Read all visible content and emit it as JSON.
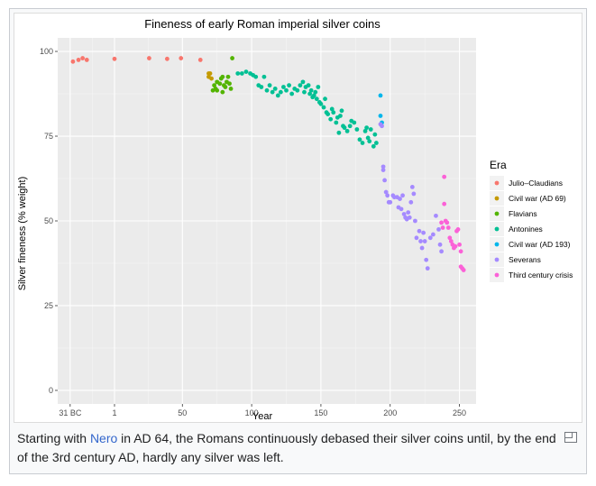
{
  "caption": {
    "before": "Starting with ",
    "link": "Nero",
    "after": " in AD 64, the Romans continuously debased their silver coins until, by the end of the 3rd century AD, hardly any silver was left."
  },
  "magnify_icon": "enlarge-icon",
  "chart_data": {
    "type": "scatter",
    "title": "Fineness of early Roman imperial silver coins",
    "xlabel": "Year",
    "ylabel": "Silver fineness (% weight)",
    "xlim": [
      -40,
      262
    ],
    "ylim": [
      -4,
      104
    ],
    "x_ticks": [
      {
        "value": -31,
        "label": "31 BC"
      },
      {
        "value": 1,
        "label": "1"
      },
      {
        "value": 50,
        "label": "50"
      },
      {
        "value": 100,
        "label": "100"
      },
      {
        "value": 150,
        "label": "150"
      },
      {
        "value": 200,
        "label": "200"
      },
      {
        "value": 250,
        "label": "250"
      }
    ],
    "y_ticks": [
      0,
      25,
      50,
      75,
      100
    ],
    "grid": true,
    "legend": {
      "title": "Era",
      "position": "right"
    },
    "series": [
      {
        "name": "Julio–Claudians",
        "color": "#F8766D",
        "points": [
          [
            -29,
            97
          ],
          [
            -25,
            97.5
          ],
          [
            -22,
            98
          ],
          [
            -19,
            97.5
          ],
          [
            1,
            97.8
          ],
          [
            26,
            98
          ],
          [
            39,
            97.8
          ],
          [
            49,
            98
          ],
          [
            63,
            97.5
          ]
        ]
      },
      {
        "name": "Civil war (AD 69)",
        "color": "#C49A00",
        "points": [
          [
            69,
            93.5
          ],
          [
            70,
            93.5
          ],
          [
            71,
            92
          ],
          [
            69,
            92.5
          ]
        ]
      },
      {
        "name": "Flavians",
        "color": "#53B400",
        "points": [
          [
            72,
            88.5
          ],
          [
            74,
            89
          ],
          [
            75,
            91
          ],
          [
            77,
            90.5
          ],
          [
            78,
            92
          ],
          [
            79,
            88
          ],
          [
            80,
            90
          ],
          [
            81,
            89.5
          ],
          [
            82,
            91
          ],
          [
            83,
            92.5
          ],
          [
            84,
            90.5
          ],
          [
            85,
            89
          ],
          [
            86,
            98
          ],
          [
            75,
            88.5
          ],
          [
            73,
            90
          ],
          [
            79,
            92.5
          ]
        ]
      },
      {
        "name": "Antonines",
        "color": "#00C094",
        "points": [
          [
            90,
            93.5
          ],
          [
            93,
            93.5
          ],
          [
            96,
            94
          ],
          [
            99,
            93.5
          ],
          [
            101,
            93
          ],
          [
            103,
            92.5
          ],
          [
            105,
            90
          ],
          [
            107,
            89.5
          ],
          [
            109,
            92.5
          ],
          [
            111,
            88.5
          ],
          [
            113,
            90
          ],
          [
            115,
            88
          ],
          [
            117,
            89
          ],
          [
            119,
            87
          ],
          [
            121,
            88
          ],
          [
            123,
            89.5
          ],
          [
            125,
            88.5
          ],
          [
            127,
            90
          ],
          [
            129,
            87.5
          ],
          [
            131,
            89
          ],
          [
            133,
            88.5
          ],
          [
            135,
            90
          ],
          [
            137,
            91
          ],
          [
            138,
            88
          ],
          [
            139,
            89.5
          ],
          [
            141,
            90
          ],
          [
            142,
            87.5
          ],
          [
            143,
            88.5
          ],
          [
            144,
            86.5
          ],
          [
            145,
            87
          ],
          [
            146,
            88
          ],
          [
            147,
            86
          ],
          [
            148,
            89.5
          ],
          [
            149,
            85
          ],
          [
            150,
            84.5
          ],
          [
            152,
            83.5
          ],
          [
            153,
            86
          ],
          [
            154,
            82
          ],
          [
            155,
            81.5
          ],
          [
            157,
            80
          ],
          [
            158,
            83
          ],
          [
            159,
            82
          ],
          [
            161,
            79
          ],
          [
            162,
            80.5
          ],
          [
            163,
            76
          ],
          [
            164,
            81
          ],
          [
            165,
            82.5
          ],
          [
            166,
            78
          ],
          [
            167,
            77.5
          ],
          [
            169,
            76.5
          ],
          [
            171,
            78
          ],
          [
            172,
            79.5
          ],
          [
            174,
            79
          ],
          [
            176,
            77
          ],
          [
            178,
            74
          ],
          [
            180,
            73
          ],
          [
            182,
            76.5
          ],
          [
            183,
            77.5
          ],
          [
            184,
            74.5
          ],
          [
            185,
            73.5
          ],
          [
            186,
            77
          ],
          [
            188,
            72
          ],
          [
            189,
            75.5
          ],
          [
            190,
            73
          ]
        ]
      },
      {
        "name": "Civil war (AD 193)",
        "color": "#00B6EB",
        "points": [
          [
            193,
            87
          ],
          [
            193,
            81
          ],
          [
            194,
            79
          ]
        ]
      },
      {
        "name": "Severans",
        "color": "#A58AFF",
        "points": [
          [
            193,
            78.5
          ],
          [
            194,
            78
          ],
          [
            195,
            66
          ],
          [
            195,
            65
          ],
          [
            196,
            62
          ],
          [
            197,
            58.5
          ],
          [
            198,
            57.5
          ],
          [
            199,
            55.5
          ],
          [
            200,
            55.5
          ],
          [
            202,
            57.5
          ],
          [
            203,
            57
          ],
          [
            205,
            57
          ],
          [
            206,
            54
          ],
          [
            207,
            56.5
          ],
          [
            208,
            53.5
          ],
          [
            209,
            57.5
          ],
          [
            210,
            52
          ],
          [
            211,
            51
          ],
          [
            212,
            50.5
          ],
          [
            213,
            52.5
          ],
          [
            214,
            51
          ],
          [
            215,
            55.5
          ],
          [
            216,
            60
          ],
          [
            217,
            58
          ],
          [
            218,
            50
          ],
          [
            219,
            45
          ],
          [
            221,
            47
          ],
          [
            222,
            44
          ],
          [
            223,
            42
          ],
          [
            224,
            46.5
          ],
          [
            225,
            44
          ],
          [
            226,
            38.5
          ],
          [
            227,
            36
          ],
          [
            229,
            45
          ],
          [
            231,
            46
          ],
          [
            233,
            51.5
          ],
          [
            235,
            47.5
          ],
          [
            236,
            43
          ],
          [
            237,
            41
          ]
        ]
      },
      {
        "name": "Third century crisis",
        "color": "#FB61D7",
        "points": [
          [
            237,
            49.5
          ],
          [
            238,
            48
          ],
          [
            239,
            63
          ],
          [
            239,
            55
          ],
          [
            240,
            50
          ],
          [
            241,
            49.5
          ],
          [
            242,
            48
          ],
          [
            243,
            45
          ],
          [
            244,
            44
          ],
          [
            245,
            43
          ],
          [
            246,
            42
          ],
          [
            247,
            42.5
          ],
          [
            248,
            47
          ],
          [
            249,
            47.5
          ],
          [
            250,
            43
          ],
          [
            251,
            41
          ],
          [
            251,
            36.5
          ],
          [
            252,
            36
          ],
          [
            253,
            35.5
          ]
        ]
      }
    ]
  }
}
